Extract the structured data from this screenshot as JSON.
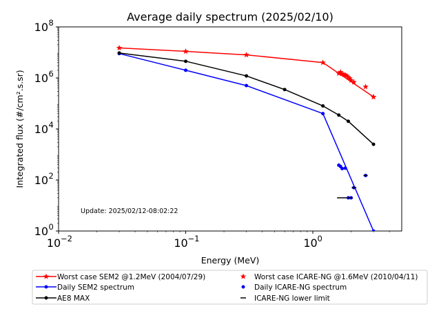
{
  "chart_data": {
    "type": "line",
    "title": "Average daily spectrum (2025/02/10)",
    "xlabel": "Energy (MeV)",
    "ylabel": "Integrated flux (#/cm².s.sr)",
    "x_scale": "log",
    "y_scale": "log",
    "xlim": [
      0.01,
      5
    ],
    "ylim": [
      1,
      100000000
    ],
    "x_ticks": [
      {
        "value": 0.01,
        "base": "10",
        "exp": "−2"
      },
      {
        "value": 0.1,
        "base": "10",
        "exp": "−1"
      },
      {
        "value": 1,
        "base": "10",
        "exp": "0"
      }
    ],
    "y_ticks": [
      {
        "value": 1,
        "base": "10",
        "exp": "0"
      },
      {
        "value": 100,
        "base": "10",
        "exp": "2"
      },
      {
        "value": 10000,
        "base": "10",
        "exp": "4"
      },
      {
        "value": 1000000,
        "base": "10",
        "exp": "6"
      },
      {
        "value": 100000000,
        "base": "10",
        "exp": "8"
      }
    ],
    "annotation": "Update: 2025/02/12-08:02:22",
    "legend_position": "below plot, two columns",
    "series": [
      {
        "name": "Worst case SEM2 @1.2MeV (2004/07/29)",
        "style": "line-star",
        "color": "#ff0000",
        "points": [
          [
            0.03,
            15000000
          ],
          [
            0.1,
            11000000
          ],
          [
            0.3,
            8000000
          ],
          [
            1.2,
            4000000
          ],
          [
            3.0,
            180000
          ]
        ]
      },
      {
        "name": "Daily SEM2 spectrum",
        "style": "line-dot",
        "color": "#0000ff",
        "points": [
          [
            0.03,
            9000000
          ],
          [
            0.1,
            2000000
          ],
          [
            0.3,
            500000
          ],
          [
            1.2,
            40000
          ],
          [
            3.0,
            1
          ]
        ]
      },
      {
        "name": "AE8 MAX",
        "style": "line-dot",
        "color": "#000000",
        "points": [
          [
            0.03,
            9500000
          ],
          [
            0.1,
            4500000
          ],
          [
            0.3,
            1200000
          ],
          [
            0.6,
            350000
          ],
          [
            1.2,
            80000
          ],
          [
            1.6,
            35000
          ],
          [
            1.9,
            20000
          ],
          [
            3.0,
            2500
          ]
        ]
      },
      {
        "name": "Worst case ICARE-NG @1.6MeV (2010/04/11)",
        "style": "star",
        "color": "#ff0000",
        "points": [
          [
            1.6,
            1500000
          ],
          [
            1.65,
            1700000
          ],
          [
            1.7,
            1450000
          ],
          [
            1.75,
            1350000
          ],
          [
            1.8,
            1300000
          ],
          [
            1.85,
            1200000
          ],
          [
            1.9,
            1050000
          ],
          [
            1.95,
            950000
          ],
          [
            2.0,
            800000
          ],
          [
            2.1,
            680000
          ],
          [
            2.6,
            450000
          ],
          [
            3.0,
            180000
          ]
        ]
      },
      {
        "name": "Daily ICARE-NG spectrum",
        "style": "dot",
        "color": "#0000ff",
        "points": [
          [
            1.6,
            380
          ],
          [
            1.65,
            340
          ],
          [
            1.7,
            280
          ],
          [
            1.8,
            290
          ],
          [
            1.9,
            20
          ],
          [
            2.0,
            20
          ],
          [
            2.1,
            50
          ],
          [
            2.6,
            150
          ]
        ]
      },
      {
        "name": "ICARE-NG lower limit",
        "style": "hline",
        "color": "#000000",
        "segments": [
          [
            1.55,
            1.85,
            20
          ],
          [
            1.88,
            2.05,
            20
          ],
          [
            2.02,
            2.2,
            50
          ],
          [
            2.5,
            2.7,
            150
          ]
        ]
      }
    ]
  }
}
